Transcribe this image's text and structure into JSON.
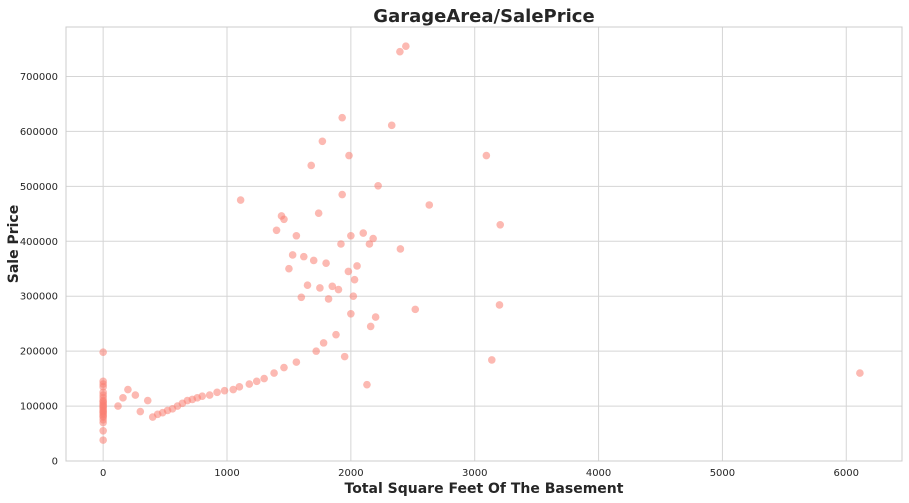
{
  "chart_data": {
    "type": "scatter",
    "title": "GarageArea/SalePrice",
    "xlabel": "Total Square Feet Of The Basement",
    "ylabel": "Sale Price",
    "xlim": [
      -300,
      6450
    ],
    "ylim": [
      0,
      790000
    ],
    "x_ticks": [
      0,
      1000,
      2000,
      3000,
      4000,
      5000,
      6000
    ],
    "y_ticks": [
      0,
      100000,
      200000,
      300000,
      400000,
      500000,
      600000,
      700000
    ],
    "grid": true,
    "marker_color": "#fa8072",
    "marker_alpha": 0.55,
    "series": [
      {
        "x": [
          2444,
          2396,
          1930,
          2330,
          1770,
          1985,
          3094,
          1680,
          2220,
          1930,
          2633,
          1110,
          1740,
          1440,
          1460,
          3206,
          1400,
          1560,
          2000,
          2100,
          2150,
          2180,
          1920,
          2400,
          1530,
          1620,
          1700,
          1800,
          2050,
          1500,
          1980,
          2030,
          1650,
          1850,
          1750,
          1900,
          2020,
          1600,
          1820,
          3200,
          2520,
          3138,
          2000,
          2200,
          2130,
          2160,
          6110,
          1950,
          1880,
          1780,
          1720,
          1560,
          1460,
          1380,
          1300,
          1240,
          1180,
          1100,
          1050,
          980,
          920,
          860,
          800,
          760,
          720,
          680,
          640,
          600,
          560,
          520,
          480,
          440,
          400,
          360,
          300,
          260,
          200,
          160,
          120,
          0,
          0,
          0,
          0,
          0,
          0,
          0,
          0,
          0,
          0,
          0,
          0,
          0,
          0,
          0,
          0,
          0,
          0,
          0,
          0,
          0,
          0,
          0,
          0
        ],
        "y": [
          755000,
          745000,
          625000,
          611000,
          582000,
          556000,
          556000,
          538000,
          501000,
          485000,
          466000,
          475000,
          451000,
          446000,
          440000,
          430000,
          420000,
          410000,
          410000,
          415000,
          395000,
          405000,
          395000,
          386000,
          375000,
          372000,
          365000,
          360000,
          355000,
          350000,
          345000,
          330000,
          320000,
          318000,
          315000,
          312000,
          300000,
          298000,
          295000,
          284000,
          276000,
          184000,
          268000,
          262000,
          139000,
          245000,
          160000,
          190000,
          230000,
          215000,
          200000,
          180000,
          170000,
          160000,
          150000,
          145000,
          140000,
          135000,
          130000,
          128000,
          125000,
          120000,
          118000,
          115000,
          112000,
          110000,
          105000,
          100000,
          95000,
          92000,
          88000,
          85000,
          80000,
          110000,
          90000,
          120000,
          130000,
          115000,
          100000,
          198000,
          145000,
          140000,
          135000,
          125000,
          120000,
          115000,
          110000,
          108000,
          105000,
          102000,
          100000,
          98000,
          95000,
          92000,
          90000,
          88000,
          85000,
          82000,
          80000,
          75000,
          70000,
          55000,
          38000
        ]
      }
    ]
  }
}
